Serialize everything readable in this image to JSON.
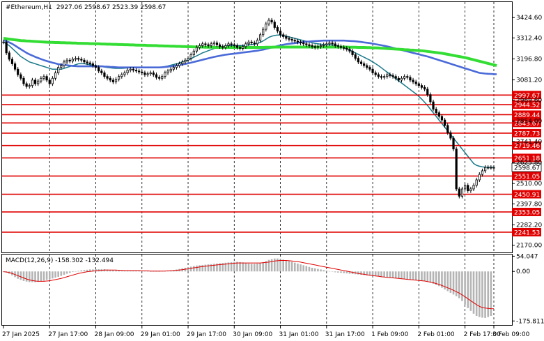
{
  "header": {
    "symbol": "#Ethereum,H1",
    "ohlc": "2927.06 2598.67 2523.39 2598.67"
  },
  "macd_header": "MACD(12,26,9) -158.302 -132.494",
  "colors": {
    "background": "#ffffff",
    "candle": "#000000",
    "ma_fast": "#1a7a8a",
    "ma_mid": "#4a6ad8",
    "ma_slow": "#33dd33",
    "level": "#e00000",
    "histogram": "#b4b4b4",
    "signal": "#e00000",
    "current_price_bg": "#ffffff"
  },
  "chart_data": [
    {
      "type": "line",
      "name": "price",
      "ylim": [
        2130,
        3510
      ],
      "xlim": [
        0,
        170
      ],
      "y_ticks": [
        "3424.60",
        "3312.40",
        "3196.80",
        "3081.20",
        "2969.60",
        "2854.00",
        "2741.40",
        "2625.80",
        "2510.00",
        "2397.80",
        "2282.20",
        "2170.00"
      ],
      "x_ticks": [
        "27 Jan 2025",
        "27 Jan 17:00",
        "28 Jan 09:00",
        "29 Jan 01:00",
        "29 Jan 17:00",
        "30 Jan 09:00",
        "31 Jan 01:00",
        "31 Jan 17:00",
        "1 Feb 09:00",
        "2 Feb 01:00",
        "2 Feb 17:00",
        "3 Feb 09:00"
      ],
      "x_tick_pos": [
        0,
        16,
        32,
        48,
        64,
        80,
        96,
        112,
        128,
        144,
        160,
        170
      ],
      "close": [
        3290,
        3230,
        3195,
        3170,
        3140,
        3110,
        3090,
        3060,
        3045,
        3050,
        3080,
        3060,
        3075,
        3090,
        3100,
        3080,
        3060,
        3090,
        3120,
        3150,
        3160,
        3180,
        3190,
        3185,
        3195,
        3200,
        3195,
        3190,
        3180,
        3175,
        3170,
        3160,
        3150,
        3130,
        3120,
        3100,
        3090,
        3080,
        3070,
        3085,
        3100,
        3110,
        3120,
        3135,
        3140,
        3135,
        3130,
        3125,
        3120,
        3110,
        3115,
        3120,
        3110,
        3095,
        3090,
        3100,
        3120,
        3130,
        3140,
        3150,
        3160,
        3170,
        3180,
        3190,
        3200,
        3220,
        3240,
        3260,
        3270,
        3280,
        3275,
        3270,
        3280,
        3285,
        3275,
        3265,
        3260,
        3270,
        3280,
        3275,
        3270,
        3260,
        3255,
        3265,
        3280,
        3290,
        3285,
        3280,
        3300,
        3330,
        3360,
        3390,
        3410,
        3400,
        3370,
        3350,
        3330,
        3320,
        3310,
        3305,
        3300,
        3295,
        3290,
        3285,
        3280,
        3275,
        3270,
        3265,
        3260,
        3265,
        3270,
        3275,
        3280,
        3285,
        3280,
        3270,
        3265,
        3260,
        3255,
        3250,
        3240,
        3220,
        3200,
        3180,
        3170,
        3160,
        3150,
        3140,
        3120,
        3110,
        3100,
        3095,
        3100,
        3110,
        3105,
        3100,
        3090,
        3080,
        3090,
        3100,
        3095,
        3080,
        3070,
        3060,
        3050,
        3040,
        3030,
        3000,
        2960,
        2920,
        2900,
        2880,
        2860,
        2830,
        2790,
        2760,
        2700,
        2480,
        2440,
        2480,
        2500,
        2470,
        2480,
        2500,
        2530,
        2560,
        2580,
        2598.67,
        2598.67,
        2598.67,
        2598.67
      ],
      "ma_fast": [
        3290,
        3280,
        3270,
        3255,
        3240,
        3225,
        3210,
        3200,
        3190,
        3180,
        3175,
        3170,
        3165,
        3160,
        3155,
        3150,
        3145,
        3140,
        3140,
        3140,
        3140,
        3145,
        3150,
        3155,
        3160,
        3165,
        3170,
        3170,
        3170,
        3168,
        3165,
        3162,
        3160,
        3158,
        3155,
        3152,
        3150,
        3148,
        3146,
        3145,
        3145,
        3145,
        3146,
        3147,
        3148,
        3149,
        3150,
        3150,
        3150,
        3150,
        3150,
        3150,
        3150,
        3150,
        3150,
        3152,
        3155,
        3158,
        3162,
        3166,
        3170,
        3175,
        3180,
        3185,
        3190,
        3198,
        3206,
        3214,
        3222,
        3230,
        3236,
        3242,
        3248,
        3254,
        3258,
        3262,
        3265,
        3268,
        3270,
        3270,
        3270,
        3270,
        3270,
        3270,
        3272,
        3274,
        3276,
        3278,
        3282,
        3288,
        3296,
        3306,
        3316,
        3322,
        3326,
        3328,
        3328,
        3326,
        3322,
        3318,
        3314,
        3310,
        3306,
        3302,
        3298,
        3294,
        3290,
        3286,
        3282,
        3280,
        3278,
        3276,
        3275,
        3275,
        3274,
        3272,
        3268,
        3263,
        3258,
        3252,
        3246,
        3238,
        3230,
        3222,
        3214,
        3206,
        3198,
        3190,
        3180,
        3170,
        3160,
        3148,
        3136,
        3124,
        3112,
        3100,
        3088,
        3076,
        3064,
        3052,
        3040,
        3028,
        3016,
        3004,
        2990,
        2975,
        2958,
        2940,
        2920,
        2900,
        2880,
        2860,
        2840,
        2820,
        2800,
        2780,
        2760,
        2740,
        2720,
        2700,
        2680,
        2660,
        2640,
        2620,
        2610,
        2605,
        2602,
        2600,
        2600,
        2600,
        2600
      ],
      "ma_mid": [
        3300,
        3295,
        3288,
        3280,
        3270,
        3260,
        3250,
        3240,
        3230,
        3222,
        3215,
        3208,
        3202,
        3196,
        3190,
        3185,
        3180,
        3176,
        3172,
        3168,
        3166,
        3164,
        3162,
        3160,
        3158,
        3157,
        3156,
        3156,
        3156,
        3156,
        3156,
        3156,
        3156,
        3156,
        3156,
        3155,
        3154,
        3153,
        3152,
        3151,
        3150,
        3150,
        3150,
        3150,
        3150,
        3150,
        3150,
        3150,
        3150,
        3150,
        3150,
        3150,
        3150,
        3150,
        3150,
        3151,
        3152,
        3154,
        3156,
        3158,
        3160,
        3163,
        3166,
        3169,
        3172,
        3176,
        3180,
        3184,
        3188,
        3192,
        3196,
        3200,
        3204,
        3208,
        3211,
        3214,
        3217,
        3220,
        3222,
        3224,
        3226,
        3228,
        3230,
        3232,
        3234,
        3236,
        3238,
        3240,
        3242,
        3245,
        3248,
        3252,
        3256,
        3260,
        3264,
        3268,
        3272,
        3275,
        3278,
        3280,
        3282,
        3284,
        3286,
        3288,
        3290,
        3292,
        3293,
        3294,
        3295,
        3296,
        3297,
        3298,
        3298,
        3298,
        3298,
        3298,
        3298,
        3298,
        3298,
        3297,
        3296,
        3295,
        3294,
        3292,
        3290,
        3288,
        3286,
        3284,
        3281,
        3278,
        3275,
        3272,
        3269,
        3266,
        3262,
        3258,
        3254,
        3250,
        3246,
        3242,
        3238,
        3234,
        3230,
        3226,
        3222,
        3218,
        3214,
        3210,
        3205,
        3200,
        3195,
        3190,
        3185,
        3180,
        3175,
        3170,
        3165,
        3160,
        3155,
        3150,
        3145,
        3140,
        3135,
        3130,
        3125,
        3120,
        3118,
        3116,
        3115,
        3114,
        3113,
        3112
      ],
      "ma_slow": [
        3310,
        3308,
        3306,
        3304,
        3302,
        3300,
        3298,
        3297,
        3296,
        3295,
        3294,
        3293,
        3292,
        3291,
        3290,
        3289,
        3288,
        3288,
        3287,
        3287,
        3286,
        3286,
        3285,
        3285,
        3284,
        3284,
        3283,
        3283,
        3282,
        3282,
        3281,
        3281,
        3280,
        3280,
        3279,
        3279,
        3278,
        3278,
        3277,
        3277,
        3276,
        3276,
        3275,
        3275,
        3274,
        3274,
        3273,
        3273,
        3272,
        3272,
        3271,
        3271,
        3270,
        3270,
        3269,
        3269,
        3268,
        3268,
        3267,
        3267,
        3266,
        3266,
        3265,
        3265,
        3264,
        3264,
        3263,
        3263,
        3262,
        3262,
        3261,
        3261,
        3261,
        3260,
        3260,
        3260,
        3260,
        3260,
        3260,
        3260,
        3260,
        3260,
        3260,
        3260,
        3260,
        3260,
        3260,
        3260,
        3260,
        3260,
        3260,
        3261,
        3261,
        3261,
        3262,
        3262,
        3262,
        3262,
        3262,
        3262,
        3262,
        3262,
        3262,
        3262,
        3262,
        3262,
        3262,
        3262,
        3262,
        3262,
        3262,
        3262,
        3262,
        3262,
        3262,
        3262,
        3262,
        3262,
        3262,
        3262,
        3261,
        3261,
        3261,
        3260,
        3260,
        3260,
        3259,
        3259,
        3258,
        3258,
        3257,
        3256,
        3255,
        3254,
        3253,
        3252,
        3251,
        3250,
        3249,
        3248,
        3247,
        3246,
        3245,
        3244,
        3243,
        3242,
        3240,
        3238,
        3236,
        3234,
        3232,
        3230,
        3228,
        3225,
        3222,
        3219,
        3216,
        3213,
        3210,
        3207,
        3204,
        3200,
        3196,
        3192,
        3188,
        3184,
        3180,
        3176,
        3172,
        3168,
        3164,
        3160
      ],
      "levels": [
        2997.67,
        2944.52,
        2889.44,
        2843.67,
        2787.73,
        2719.46,
        2651.18,
        2551.05,
        2450.91,
        2353.05,
        2241.53
      ],
      "level_labels": [
        "2997.67",
        "2944.52",
        "2889.44",
        "2843.67",
        "2787.73",
        "2719.46",
        "2651.18",
        "2551.05",
        "2450.91",
        "2353.05",
        "2241.53"
      ],
      "current_price": 2598.67,
      "current_price_label": "2598.67"
    },
    {
      "type": "bar",
      "name": "MACD(12,26,9)",
      "ylim": [
        -190,
        60
      ],
      "y_ticks": [
        "54.047",
        "0.00",
        "-175.811"
      ],
      "histogram": [
        -2,
        -4,
        -8,
        -14,
        -20,
        -26,
        -30,
        -34,
        -36,
        -38,
        -38,
        -38,
        -37,
        -35,
        -33,
        -30,
        -28,
        -25,
        -22,
        -19,
        -16,
        -12,
        -8,
        -5,
        -2,
        0,
        2,
        4,
        5,
        6,
        7,
        7,
        8,
        8,
        8,
        8,
        7,
        6,
        5,
        4,
        3,
        2,
        2,
        2,
        2,
        2,
        2,
        2,
        1,
        1,
        0,
        0,
        -1,
        -1,
        0,
        1,
        2,
        3,
        4,
        5,
        7,
        9,
        11,
        13,
        15,
        17,
        19,
        21,
        22,
        23,
        24,
        25,
        26,
        27,
        28,
        29,
        30,
        31,
        32,
        33,
        34,
        34,
        33,
        32,
        30,
        28,
        27,
        27,
        28,
        30,
        33,
        37,
        41,
        44,
        46,
        46,
        44,
        42,
        40,
        37,
        34,
        31,
        28,
        25,
        22,
        19,
        16,
        13,
        11,
        9,
        7,
        5,
        3,
        1,
        -1,
        -3,
        -4,
        -5,
        -6,
        -7,
        -8,
        -9,
        -10,
        -11,
        -12,
        -13,
        -14,
        -15,
        -16,
        -17,
        -18,
        -19,
        -20,
        -21,
        -22,
        -23,
        -24,
        -25,
        -26,
        -27,
        -28,
        -29,
        -30,
        -31,
        -32,
        -33,
        -35,
        -37,
        -40,
        -44,
        -48,
        -52,
        -58,
        -64,
        -70,
        -76,
        -82,
        -88,
        -95,
        -105,
        -118,
        -130,
        -140,
        -150,
        -158,
        -162,
        -164,
        -165,
        -162,
        -158
      ],
      "signal": [
        -1,
        -2,
        -4,
        -7,
        -11,
        -15,
        -19,
        -23,
        -27,
        -30,
        -32,
        -34,
        -35,
        -35,
        -35,
        -34,
        -33,
        -31,
        -29,
        -27,
        -25,
        -22,
        -19,
        -16,
        -13,
        -10,
        -7,
        -5,
        -3,
        -1,
        0,
        1,
        2,
        3,
        4,
        5,
        5,
        5,
        5,
        5,
        4,
        4,
        3,
        3,
        3,
        3,
        3,
        3,
        2,
        2,
        2,
        1,
        1,
        1,
        1,
        1,
        1,
        2,
        2,
        3,
        4,
        5,
        6,
        8,
        9,
        11,
        13,
        14,
        16,
        17,
        19,
        20,
        21,
        22,
        23,
        24,
        25,
        26,
        27,
        28,
        29,
        30,
        30,
        30,
        30,
        30,
        30,
        30,
        30,
        30,
        31,
        32,
        33,
        35,
        37,
        38,
        39,
        39,
        39,
        38,
        37,
        36,
        35,
        33,
        31,
        29,
        27,
        25,
        23,
        21,
        19,
        17,
        15,
        13,
        11,
        9,
        7,
        5,
        3,
        1,
        -1,
        -3,
        -5,
        -7,
        -9,
        -10,
        -12,
        -13,
        -15,
        -16,
        -17,
        -19,
        -20,
        -21,
        -22,
        -23,
        -24,
        -25,
        -26,
        -27,
        -28,
        -29,
        -30,
        -31,
        -32,
        -33,
        -34,
        -36,
        -38,
        -40,
        -43,
        -46,
        -50,
        -54,
        -58,
        -62,
        -67,
        -72,
        -77,
        -83,
        -90,
        -97,
        -104,
        -111,
        -118,
        -124,
        -128,
        -130,
        -131,
        -132,
        -132.494
      ]
    }
  ]
}
